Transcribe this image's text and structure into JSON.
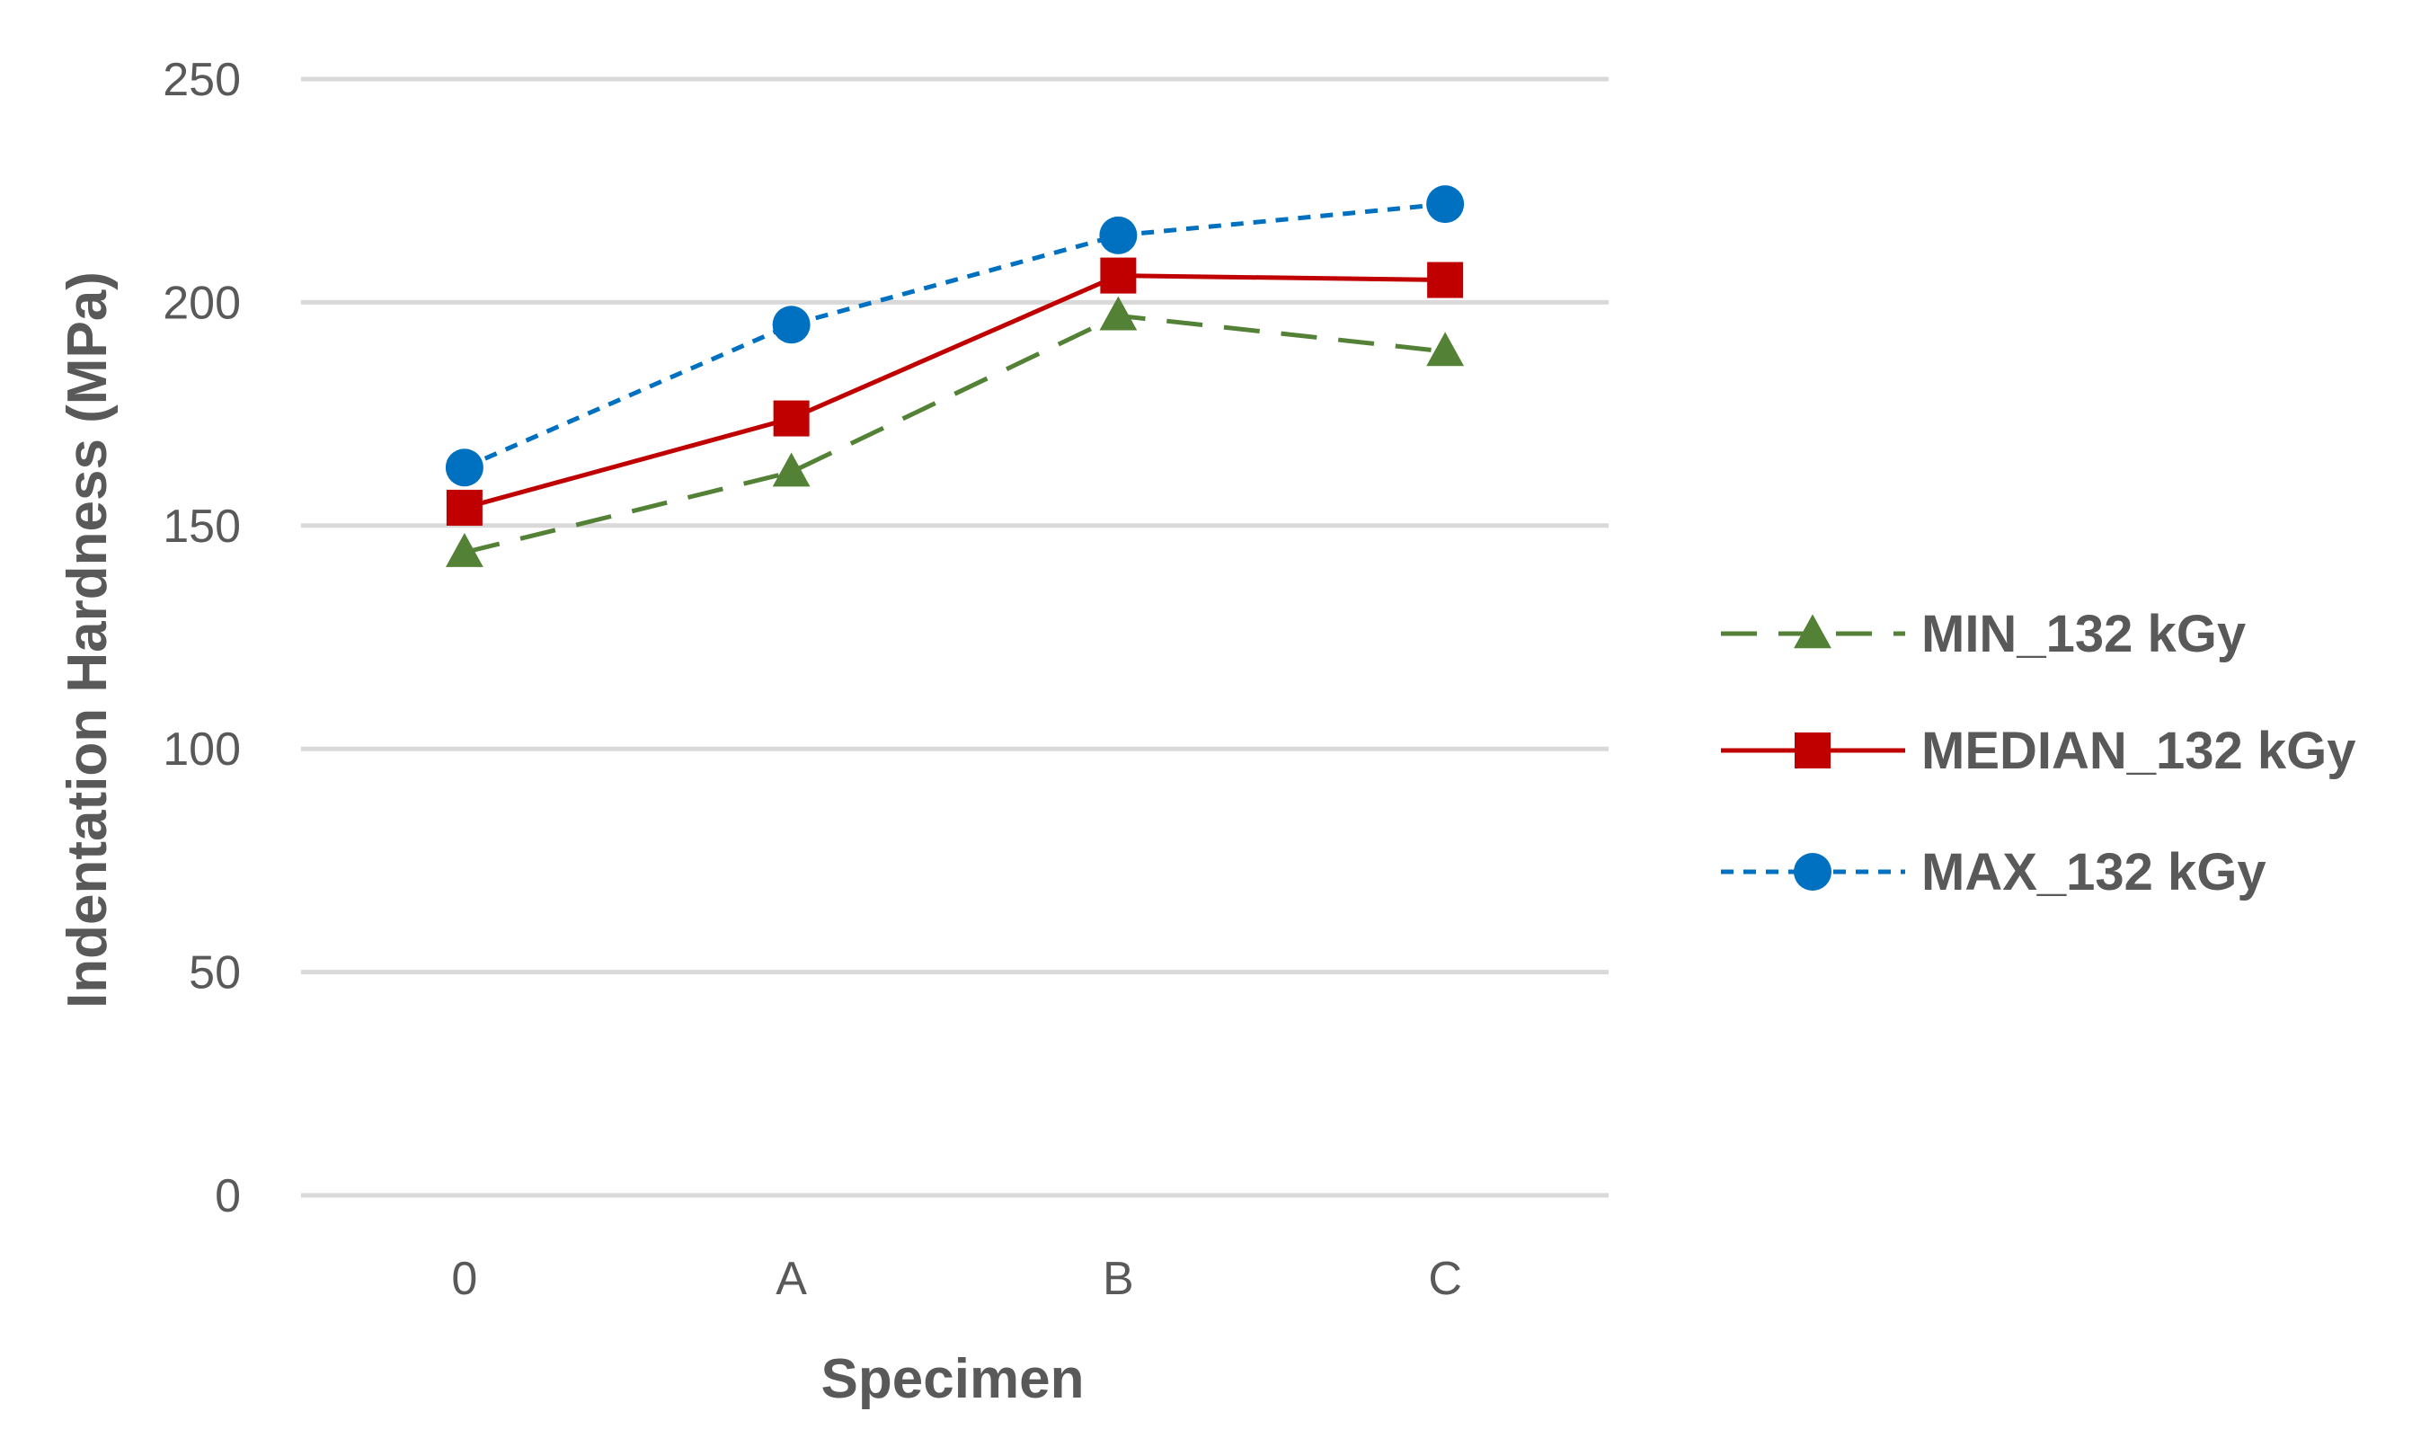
{
  "chart_data": {
    "type": "line",
    "title": "",
    "xlabel": "Specimen",
    "ylabel": "Indentation Hardness (MPa)",
    "categories": [
      "0",
      "A",
      "B",
      "C"
    ],
    "ylim": [
      0,
      250
    ],
    "yticks": [
      0,
      50,
      100,
      150,
      200,
      250
    ],
    "grid": true,
    "legend_position": "right",
    "series": [
      {
        "name": "MIN_132 kGy",
        "values": [
          144,
          162,
          197,
          189
        ],
        "color": "#538135",
        "line_style": "dashed",
        "marker": "triangle"
      },
      {
        "name": "MEDIAN_132 kGy",
        "values": [
          154,
          174,
          206,
          205
        ],
        "color": "#c00000",
        "line_style": "solid",
        "marker": "square"
      },
      {
        "name": "MAX_132 kGy",
        "values": [
          163,
          195,
          215,
          222
        ],
        "color": "#0070c0",
        "line_style": "dotted",
        "marker": "circle"
      }
    ]
  }
}
